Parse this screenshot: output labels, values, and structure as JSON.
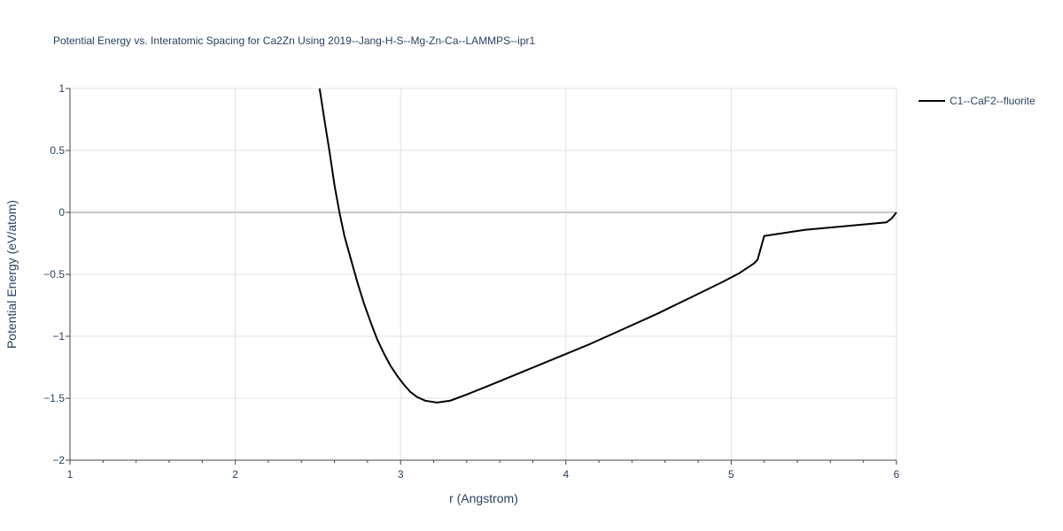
{
  "chart_data": {
    "type": "line",
    "title": "Potential Energy vs. Interatomic Spacing for Ca2Zn Using 2019--Jang-H-S--Mg-Zn-Ca--LAMMPS--ipr1",
    "xlabel": "r (Angstrom)",
    "ylabel": "Potential Energy (eV/atom)",
    "xlim": [
      1,
      6
    ],
    "ylim": [
      -2,
      1
    ],
    "x_ticks": [
      "1",
      "2",
      "3",
      "4",
      "5",
      "6"
    ],
    "y_ticks": [
      "1",
      "0.5",
      "0",
      "−0.5",
      "−1",
      "−1.5",
      "−2"
    ],
    "x_tick_values": [
      1,
      2,
      3,
      4,
      5,
      6
    ],
    "y_tick_values": [
      1,
      0.5,
      0,
      -0.5,
      -1,
      -1.5,
      -2
    ],
    "grid": true,
    "legend_position": "top-right",
    "series": [
      {
        "name": "C1--CaF2--fluorite",
        "color": "#000000",
        "x": [
          2.51,
          2.54,
          2.57,
          2.6,
          2.63,
          2.66,
          2.7,
          2.74,
          2.78,
          2.82,
          2.86,
          2.9,
          2.94,
          2.98,
          3.02,
          3.06,
          3.1,
          3.15,
          3.22,
          3.3,
          3.4,
          3.55,
          3.75,
          3.95,
          4.15,
          4.35,
          4.55,
          4.75,
          4.95,
          5.05,
          5.14,
          5.16,
          5.2,
          5.45,
          5.7,
          5.94,
          5.97,
          6.0
        ],
        "y": [
          1.0,
          0.74,
          0.49,
          0.22,
          0.0,
          -0.19,
          -0.38,
          -0.57,
          -0.74,
          -0.89,
          -1.03,
          -1.14,
          -1.24,
          -1.32,
          -1.39,
          -1.45,
          -1.49,
          -1.52,
          -1.535,
          -1.52,
          -1.47,
          -1.39,
          -1.28,
          -1.17,
          -1.06,
          -0.94,
          -0.82,
          -0.69,
          -0.56,
          -0.49,
          -0.41,
          -0.38,
          -0.19,
          -0.14,
          -0.11,
          -0.08,
          -0.05,
          0.0
        ]
      }
    ]
  }
}
